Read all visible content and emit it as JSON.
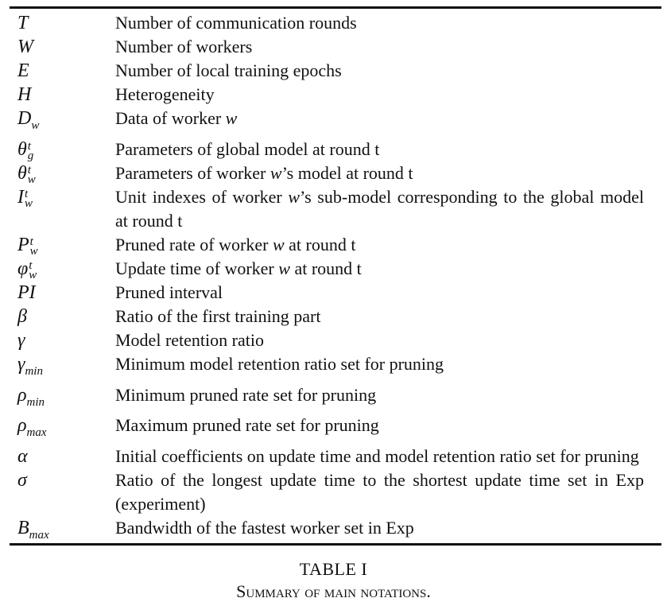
{
  "table": {
    "rows": [
      {
        "sym": "T",
        "desc": "Number of communication rounds"
      },
      {
        "sym": "W",
        "desc": "Number of workers"
      },
      {
        "sym": "E",
        "desc": "Number of local training epochs"
      },
      {
        "sym": "H",
        "desc": "Heterogeneity"
      },
      {
        "sym": "D_w",
        "desc": "Data of worker w"
      },
      {
        "sym": "θ_g^t",
        "desc": "Parameters of global model at round t"
      },
      {
        "sym": "θ_w^t",
        "desc": "Parameters of worker w’s model at round t"
      },
      {
        "sym": "I_w^t",
        "desc": "Unit indexes of worker w’s sub-model corresponding to the global model at round t"
      },
      {
        "sym": "P_w^t",
        "desc": "Pruned rate of worker w at round t"
      },
      {
        "sym": "φ_w^t",
        "desc": "Update time of worker w at round t"
      },
      {
        "sym": "PI",
        "desc": "Pruned interval"
      },
      {
        "sym": "β",
        "desc": "Ratio of the first training part"
      },
      {
        "sym": "γ",
        "desc": "Model retention ratio"
      },
      {
        "sym": "γ_min",
        "desc": "Minimum model retention ratio set for pruning"
      },
      {
        "sym": "ρ_min",
        "desc": "Minimum pruned rate set for pruning"
      },
      {
        "sym": "ρ_max",
        "desc": "Maximum pruned rate set for pruning"
      },
      {
        "sym": "α",
        "desc": "Initial coefficients on update time and model retention ratio set for pruning"
      },
      {
        "sym": "σ",
        "desc": "Ratio of the longest update time to the shortest update time set in Exp (experiment)"
      },
      {
        "sym": "B_max",
        "desc": "Bandwidth of the fastest worker set in Exp"
      }
    ]
  },
  "caption": {
    "table_label": "TABLE I",
    "title": "Summary of main notations."
  }
}
